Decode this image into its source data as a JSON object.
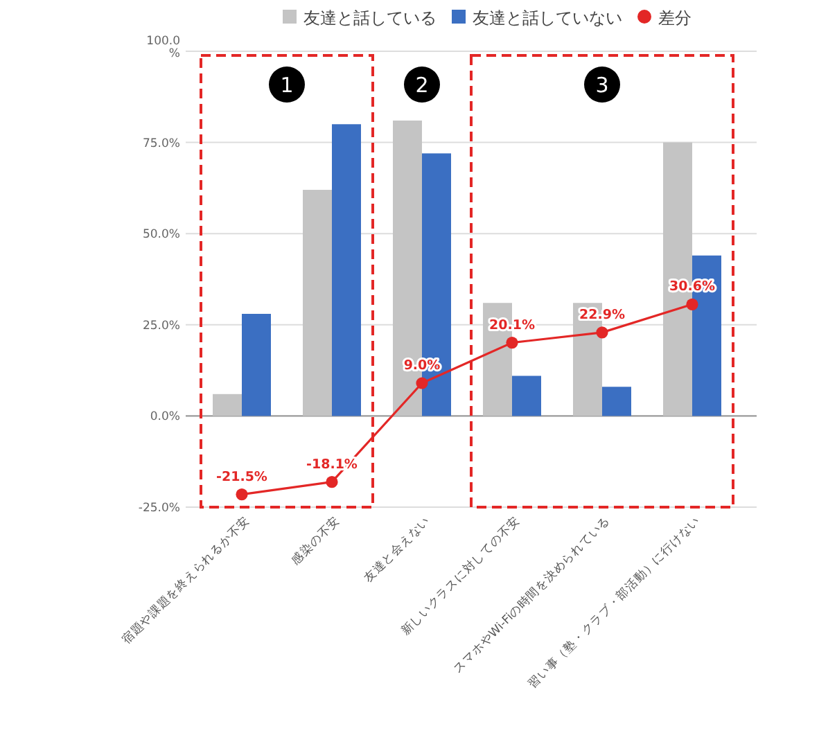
{
  "chart_data": {
    "type": "bar",
    "categories": [
      "宿題や課題を終えられるか不安",
      "感染の不安",
      "友達と会えない",
      "新しいクラスに対しての不安",
      "スマホやWi-Fiの時間を決められている",
      "習い事（塾・クラブ・部活動）に行けない"
    ],
    "series": [
      {
        "name": "友達と話している",
        "color": "#c4c4c4",
        "values": [
          6,
          62,
          81,
          31,
          31,
          75
        ]
      },
      {
        "name": "友達と話していない",
        "color": "#3b6fc2",
        "values": [
          28,
          80,
          72,
          11,
          8,
          44
        ]
      },
      {
        "name": "差分",
        "type": "line",
        "color": "#e32726",
        "values": [
          -21.5,
          -18.1,
          9.0,
          20.1,
          22.9,
          30.6
        ],
        "value_labels": [
          "-21.5%",
          "-18.1%",
          "9.0%",
          "20.1%",
          "22.9%",
          "30.6%"
        ]
      }
    ],
    "ylim": [
      -25,
      100
    ],
    "yticks": [
      {
        "value": -25,
        "label": "-25.0%"
      },
      {
        "value": 0,
        "label": "0.0%"
      },
      {
        "value": 25,
        "label": "25.0%"
      },
      {
        "value": 50,
        "label": "50.0%"
      },
      {
        "value": 75,
        "label": "75.0%"
      },
      {
        "value": 100,
        "label": "100.0\n%"
      }
    ],
    "grid": "y",
    "legend": "top",
    "marker": "circle",
    "annotations": [
      "1",
      "2",
      "3"
    ]
  }
}
